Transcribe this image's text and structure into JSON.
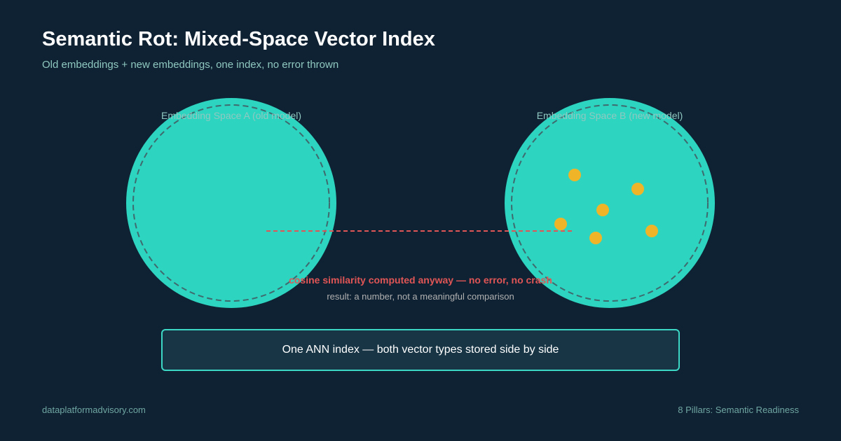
{
  "header": {
    "title": "Semantic Rot: Mixed-Space Vector Index",
    "subtitle": "Old embeddings + new embeddings, one index, no error thrown"
  },
  "diagram": {
    "space_a": {
      "label": "Embedding Space A (old model)"
    },
    "space_b": {
      "label": "Embedding Space B (new model)"
    },
    "warning": "cosine similarity computed anyway — no error, no crash",
    "result": "result: a number, not a meaningful comparison",
    "index_box": "One ANN index — both vector types stored side by side",
    "colors": {
      "space_fill": "#2dd4c0",
      "vector_point": "#f0b429",
      "warning": "#e05555",
      "background": "#0f2233"
    }
  },
  "footer": {
    "left": "dataplatformadvisory.com",
    "right": "8 Pillars: Semantic Readiness"
  }
}
